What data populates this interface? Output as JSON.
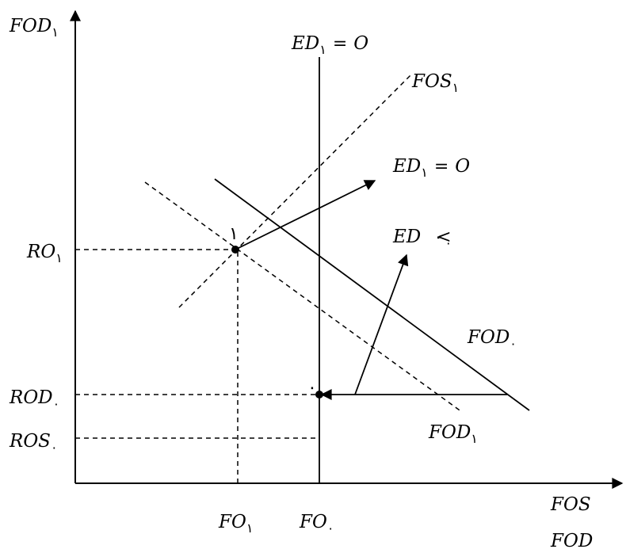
{
  "labels": {
    "y_axis": {
      "main": "FOD",
      "sub": "١"
    },
    "x_axis_1": {
      "main": "FOS",
      "sub": ""
    },
    "x_axis_2": {
      "main": "FOD",
      "sub": ""
    },
    "ed1_top": {
      "main": "ED",
      "sub": "١",
      "rel": "=",
      "rhs": "O"
    },
    "fos1": {
      "main": "FOS",
      "sub": "١"
    },
    "ed1_arrow": {
      "main": "ED",
      "sub": "١",
      "rel": "=",
      "rhs": "O"
    },
    "ed0": {
      "main": "ED",
      "sub": "٠",
      "rel": ">",
      "rhs": "٠"
    },
    "fod0": {
      "main": "FOD",
      "sub": "٠"
    },
    "fod1": {
      "main": "FOD",
      "sub": "١"
    },
    "ro1": {
      "main": "RO",
      "sub": "١"
    },
    "rod0": {
      "main": "ROD",
      "sub": "٠"
    },
    "ros0": {
      "main": "ROS",
      "sub": "٠"
    },
    "fo1": {
      "main": "FO",
      "sub": "١"
    },
    "fo0": {
      "main": "FO",
      "sub": "٠"
    },
    "point1": "١",
    "point0": "٠"
  }
}
